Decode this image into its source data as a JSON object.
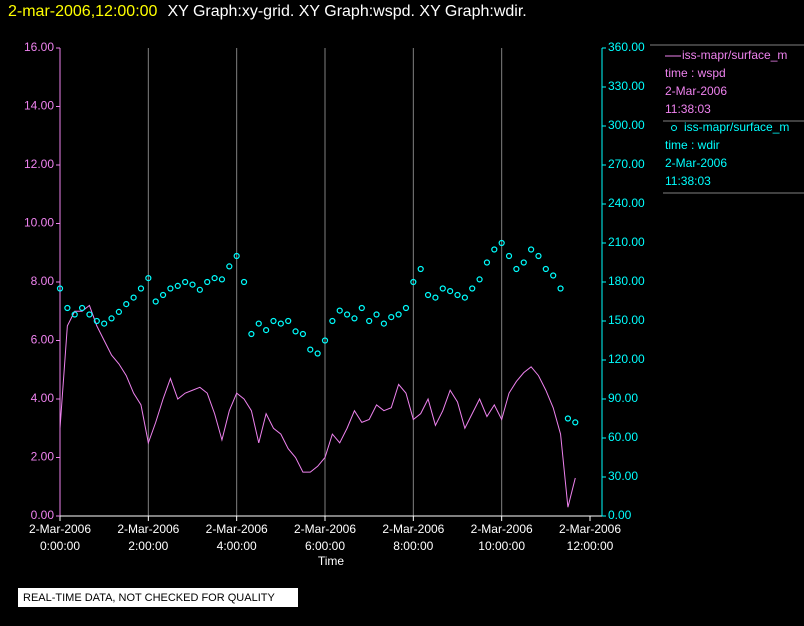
{
  "chart_data": {
    "type": "line",
    "title_time": "2-mar-2006,12:00:00",
    "title": "XY Graph:xy-grid.  XY Graph:wspd.  XY Graph:wdir.",
    "x_label": "Time",
    "footer": "REAL-TIME DATA, NOT CHECKED FOR QUALITY",
    "grid": true,
    "x": [
      "2006-03-02T00:00:00",
      "2006-03-02T00:10:00",
      "2006-03-02T00:20:00",
      "2006-03-02T00:30:00",
      "2006-03-02T00:40:00",
      "2006-03-02T00:50:00",
      "2006-03-02T01:00:00",
      "2006-03-02T01:10:00",
      "2006-03-02T01:20:00",
      "2006-03-02T01:30:00",
      "2006-03-02T01:40:00",
      "2006-03-02T01:50:00",
      "2006-03-02T02:00:00",
      "2006-03-02T02:10:00",
      "2006-03-02T02:20:00",
      "2006-03-02T02:30:00",
      "2006-03-02T02:40:00",
      "2006-03-02T02:50:00",
      "2006-03-02T03:00:00",
      "2006-03-02T03:10:00",
      "2006-03-02T03:20:00",
      "2006-03-02T03:30:00",
      "2006-03-02T03:40:00",
      "2006-03-02T03:50:00",
      "2006-03-02T04:00:00",
      "2006-03-02T04:10:00",
      "2006-03-02T04:20:00",
      "2006-03-02T04:30:00",
      "2006-03-02T04:40:00",
      "2006-03-02T04:50:00",
      "2006-03-02T05:00:00",
      "2006-03-02T05:10:00",
      "2006-03-02T05:20:00",
      "2006-03-02T05:30:00",
      "2006-03-02T05:40:00",
      "2006-03-02T05:50:00",
      "2006-03-02T06:00:00",
      "2006-03-02T06:10:00",
      "2006-03-02T06:20:00",
      "2006-03-02T06:30:00",
      "2006-03-02T06:40:00",
      "2006-03-02T06:50:00",
      "2006-03-02T07:00:00",
      "2006-03-02T07:10:00",
      "2006-03-02T07:20:00",
      "2006-03-02T07:30:00",
      "2006-03-02T07:40:00",
      "2006-03-02T07:50:00",
      "2006-03-02T08:00:00",
      "2006-03-02T08:10:00",
      "2006-03-02T08:20:00",
      "2006-03-02T08:30:00",
      "2006-03-02T08:40:00",
      "2006-03-02T08:50:00",
      "2006-03-02T09:00:00",
      "2006-03-02T09:10:00",
      "2006-03-02T09:20:00",
      "2006-03-02T09:30:00",
      "2006-03-02T09:40:00",
      "2006-03-02T09:50:00",
      "2006-03-02T10:00:00",
      "2006-03-02T10:10:00",
      "2006-03-02T10:20:00",
      "2006-03-02T10:30:00",
      "2006-03-02T10:40:00",
      "2006-03-02T10:50:00",
      "2006-03-02T11:00:00",
      "2006-03-02T11:10:00",
      "2006-03-02T11:20:00",
      "2006-03-02T11:30:00",
      "2006-03-02T11:40:00"
    ],
    "xlim": [
      "2006-03-02T00:00:00",
      "2006-03-02T12:00:00"
    ],
    "xticks": [
      {
        "value": "2006-03-02T00:00:00",
        "label": [
          "2-Mar-2006",
          "0:00:00"
        ]
      },
      {
        "value": "2006-03-02T02:00:00",
        "label": [
          "2-Mar-2006",
          "2:00:00"
        ]
      },
      {
        "value": "2006-03-02T04:00:00",
        "label": [
          "2-Mar-2006",
          "4:00:00"
        ]
      },
      {
        "value": "2006-03-02T06:00:00",
        "label": [
          "2-Mar-2006",
          "6:00:00"
        ]
      },
      {
        "value": "2006-03-02T08:00:00",
        "label": [
          "2-Mar-2006",
          "8:00:00"
        ]
      },
      {
        "value": "2006-03-02T10:00:00",
        "label": [
          "2-Mar-2006",
          "10:00:00"
        ]
      },
      {
        "value": "2006-03-02T12:00:00",
        "label": [
          "2-Mar-2006",
          "12:00:00"
        ]
      }
    ],
    "ylim": [
      0,
      16
    ],
    "yticks": [
      {
        "value": 0,
        "label": "0.00"
      },
      {
        "value": 2,
        "label": "2.00"
      },
      {
        "value": 4,
        "label": "4.00"
      },
      {
        "value": 6,
        "label": "6.00"
      },
      {
        "value": 8,
        "label": "8.00"
      },
      {
        "value": 10,
        "label": "10.00"
      },
      {
        "value": 12,
        "label": "12.00"
      },
      {
        "value": 14,
        "label": "14.00"
      },
      {
        "value": 16,
        "label": "16.00"
      }
    ],
    "y2lim": [
      0,
      360
    ],
    "y2ticks": [
      {
        "value": 0,
        "label": "0.00"
      },
      {
        "value": 30,
        "label": "30.00"
      },
      {
        "value": 60,
        "label": "60.00"
      },
      {
        "value": 90,
        "label": "90.00"
      },
      {
        "value": 120,
        "label": "120.00"
      },
      {
        "value": 150,
        "label": "150.00"
      },
      {
        "value": 180,
        "label": "180.00"
      },
      {
        "value": 210,
        "label": "210.00"
      },
      {
        "value": 240,
        "label": "240.00"
      },
      {
        "value": 270,
        "label": "270.00"
      },
      {
        "value": 300,
        "label": "300.00"
      },
      {
        "value": 330,
        "label": "330.00"
      },
      {
        "value": 360,
        "label": "360.00"
      }
    ],
    "series": [
      {
        "name": "iss-mapr/surface_m",
        "color": "#ee82ee",
        "marker": "line",
        "axis": "y",
        "legend_lines": [
          "time : wspd",
          "2-Mar-2006",
          "11:38:03"
        ],
        "values": [
          3.0,
          6.5,
          7.0,
          7.0,
          7.2,
          6.5,
          6.0,
          5.5,
          5.2,
          4.8,
          4.2,
          3.8,
          2.5,
          3.2,
          4.0,
          4.7,
          4.0,
          4.2,
          4.3,
          4.4,
          4.2,
          3.5,
          2.6,
          3.6,
          4.2,
          4.0,
          3.6,
          2.5,
          3.5,
          3.0,
          2.8,
          2.3,
          2.0,
          1.5,
          1.5,
          1.7,
          2.0,
          2.8,
          2.5,
          3.0,
          3.6,
          3.2,
          3.3,
          3.8,
          3.6,
          3.7,
          4.5,
          4.2,
          3.3,
          3.5,
          4.0,
          3.1,
          3.6,
          4.3,
          3.9,
          3.0,
          3.5,
          4.0,
          3.4,
          3.8,
          3.3,
          4.2,
          4.6,
          4.9,
          5.1,
          4.8,
          4.3,
          3.7,
          2.8,
          0.3,
          1.3
        ]
      },
      {
        "name": "iss-mapr/surface_m",
        "color": "#00ffff",
        "marker": "circle",
        "axis": "y2",
        "legend_lines": [
          "time : wdir",
          "2-Mar-2006",
          "11:38:03"
        ],
        "values": [
          175,
          160,
          155,
          160,
          155,
          150,
          148,
          152,
          157,
          163,
          168,
          175,
          183,
          165,
          170,
          175,
          177,
          180,
          178,
          174,
          180,
          183,
          182,
          192,
          200,
          180,
          140,
          148,
          143,
          150,
          148,
          150,
          142,
          140,
          128,
          125,
          135,
          150,
          158,
          155,
          152,
          160,
          150,
          155,
          148,
          153,
          155,
          160,
          180,
          190,
          170,
          168,
          175,
          173,
          170,
          168,
          175,
          182,
          195,
          205,
          210,
          200,
          190,
          195,
          205,
          200,
          190,
          185,
          175,
          75,
          72
        ]
      }
    ]
  }
}
